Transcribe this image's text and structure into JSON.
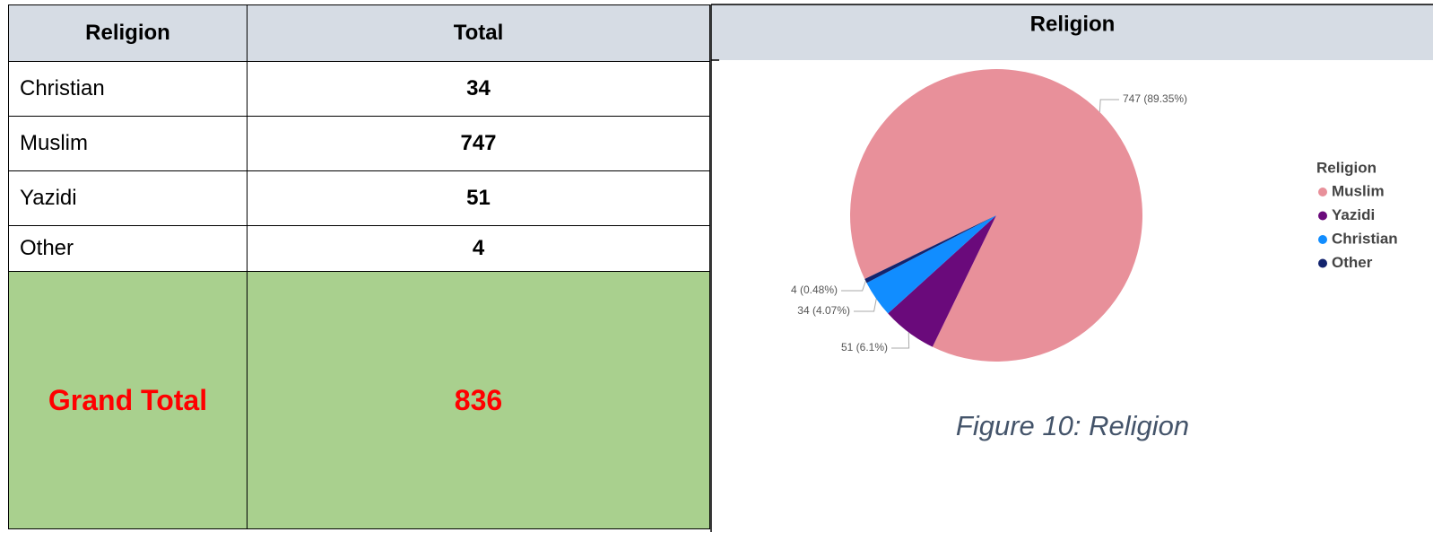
{
  "table": {
    "header": [
      "Religion",
      "Total"
    ],
    "rows": [
      [
        "Christian",
        34
      ],
      [
        "Muslim",
        747
      ],
      [
        "Yazidi",
        51
      ],
      [
        "Other",
        4
      ]
    ],
    "total": [
      "Grand Total",
      836
    ]
  },
  "chart_data": {
    "type": "pie",
    "title": "Religion",
    "categories": [
      "Muslim",
      "Yazidi",
      "Christian",
      "Other"
    ],
    "values": [
      747,
      51,
      34,
      4
    ],
    "value_labels": [
      "747 (89.35%)",
      "51 (6.1%)",
      "34 (4.07%)",
      "4 (0.48%)"
    ],
    "colors": [
      "#e8909a",
      "#6a0a7b",
      "#118dff",
      "#13246e"
    ],
    "legend_title": "Religion",
    "legend": "right",
    "caption": "Figure 10: Religion"
  }
}
